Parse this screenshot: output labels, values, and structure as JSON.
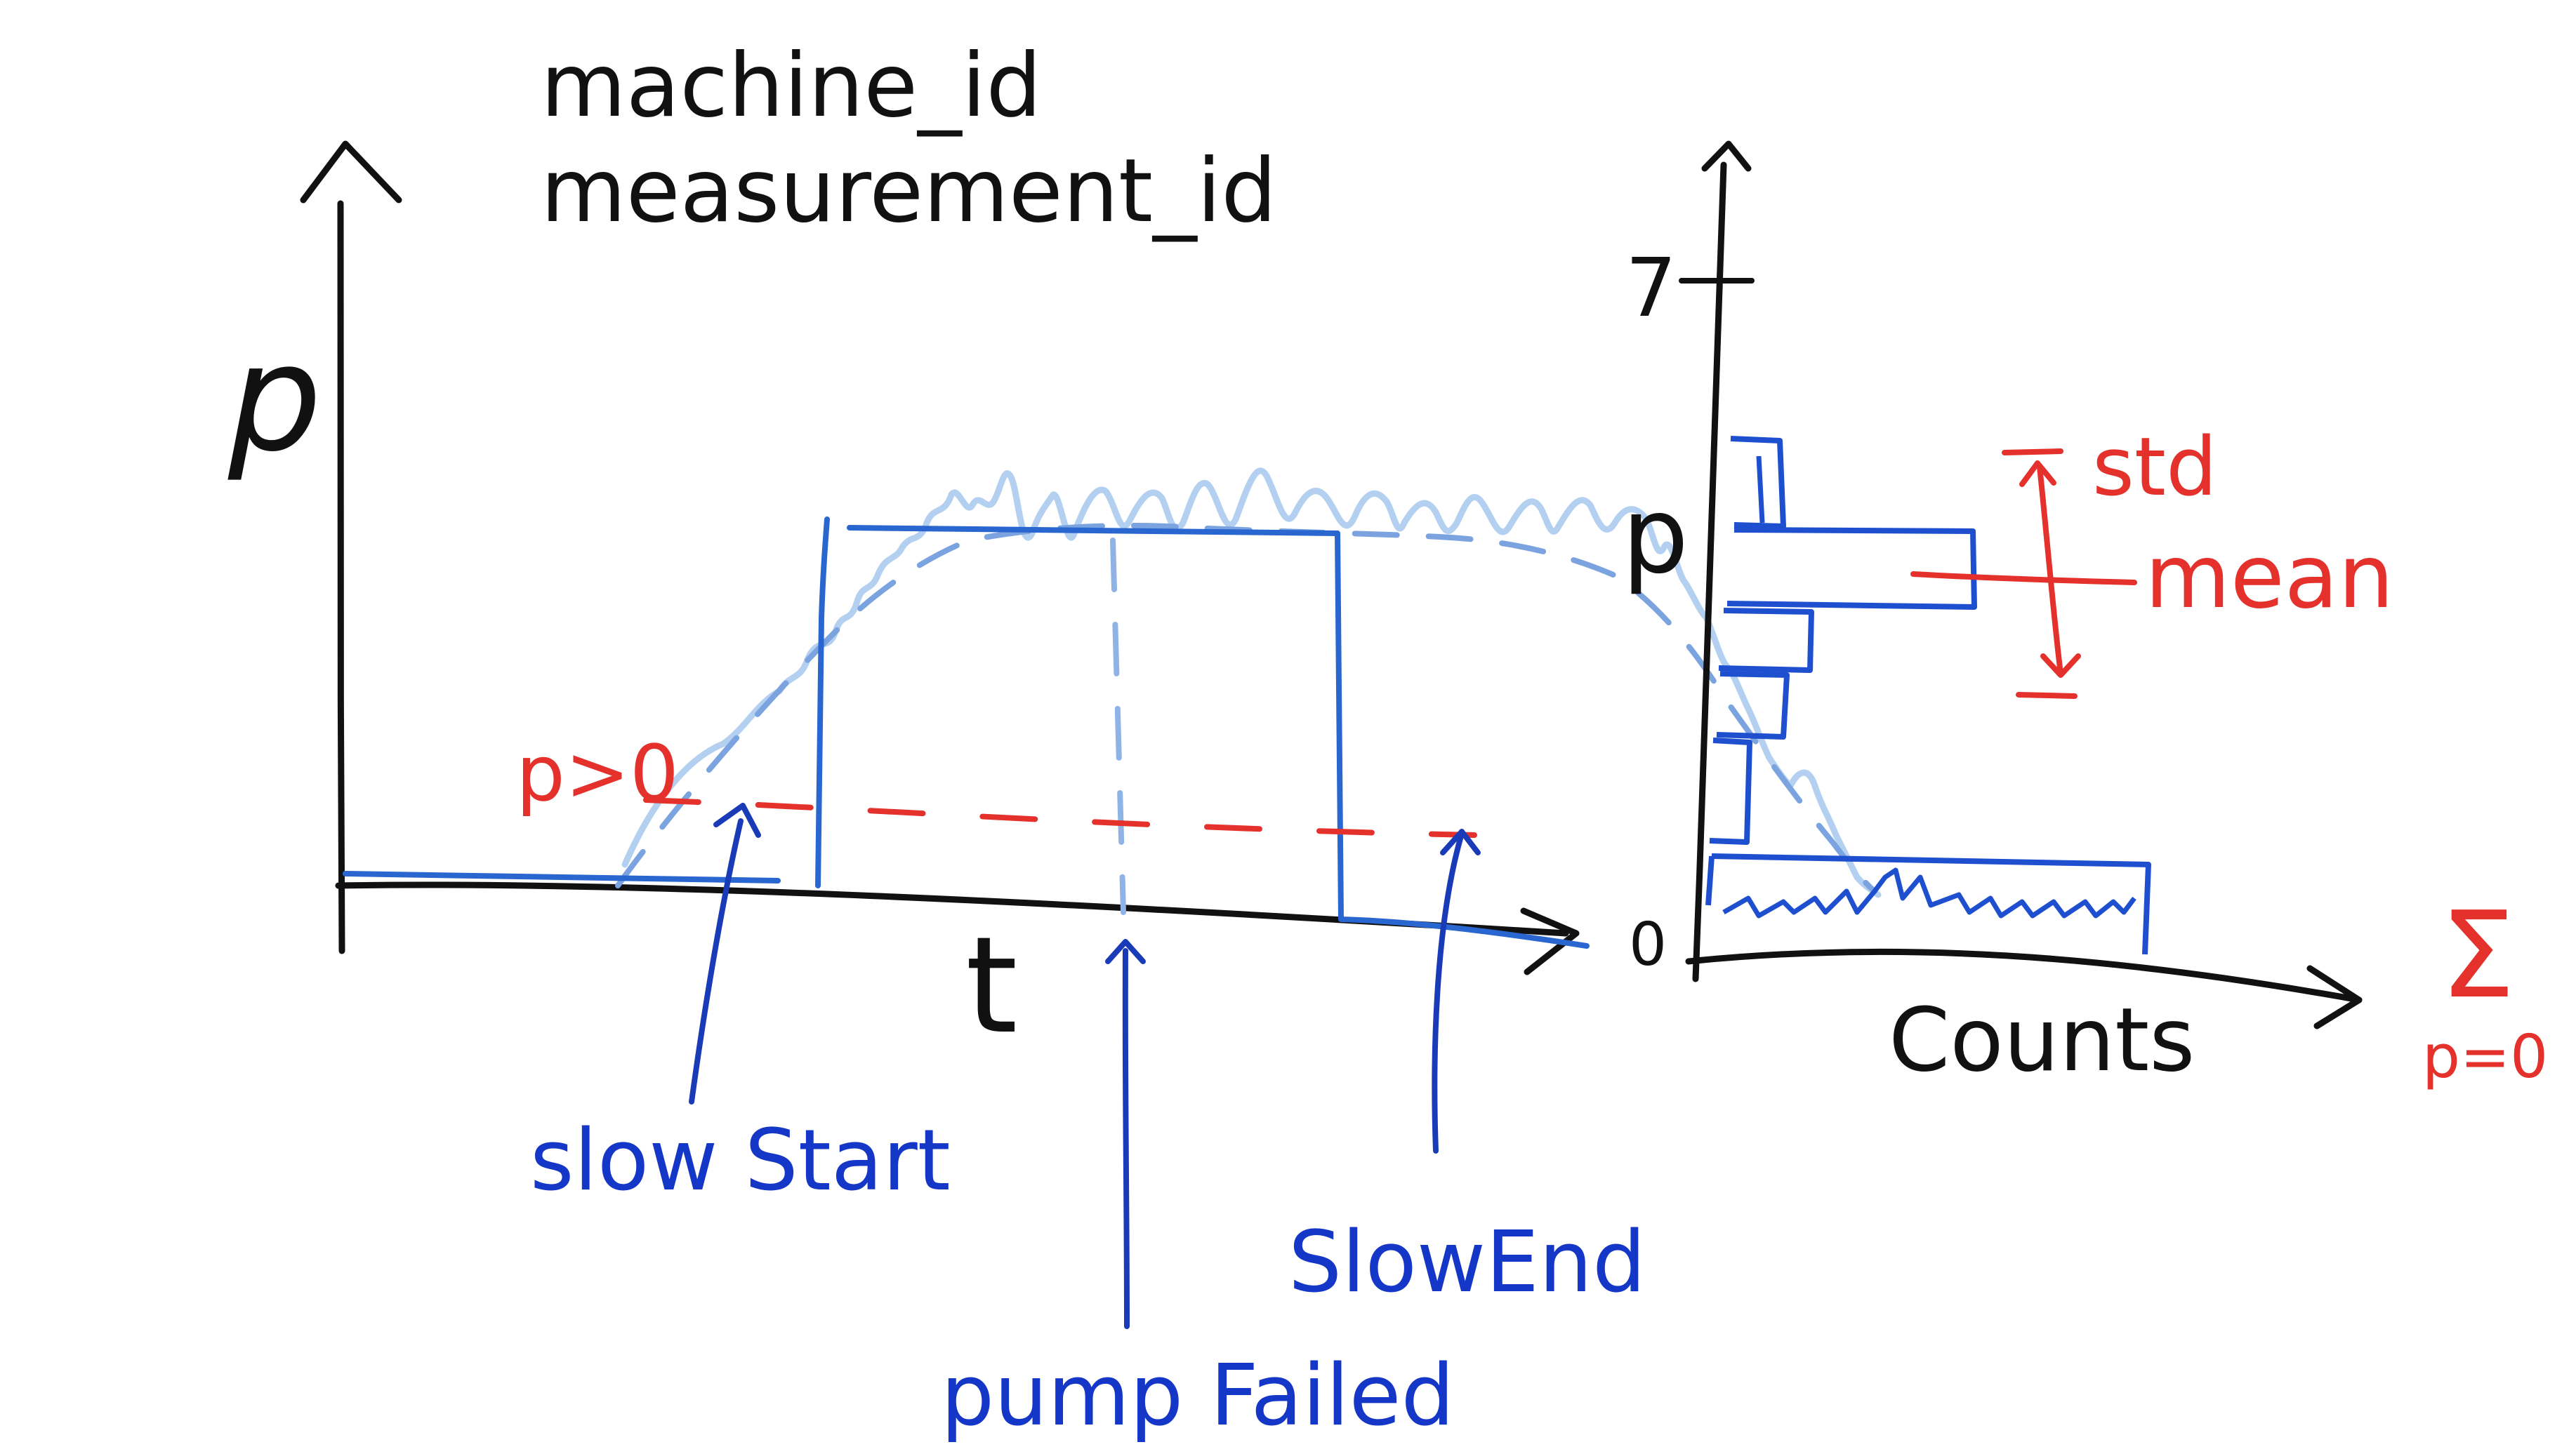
{
  "header": {
    "machine_label": "machine_id",
    "measurement_label": "measurement_id"
  },
  "time_plot": {
    "y_axis_label": "p",
    "x_axis_label": "t",
    "threshold_label": "p>0",
    "annotations": {
      "slow_start": "slow Start",
      "pump_failed": "pump Failed",
      "slow_end": "SlowEnd"
    }
  },
  "histogram": {
    "y_axis_label": "p",
    "x_axis_label": "Counts",
    "tick_top": "7",
    "tick_bottom": "0",
    "std_label": "std",
    "mean_label": "mean",
    "sum_symbol": "Σ",
    "sum_subscript": "p=0"
  },
  "colors": {
    "ink": "#111111",
    "red": "#e4312b",
    "blue": "#1537c8",
    "light_blue": "#9cc0ea",
    "mid_blue": "#6d98dc"
  }
}
